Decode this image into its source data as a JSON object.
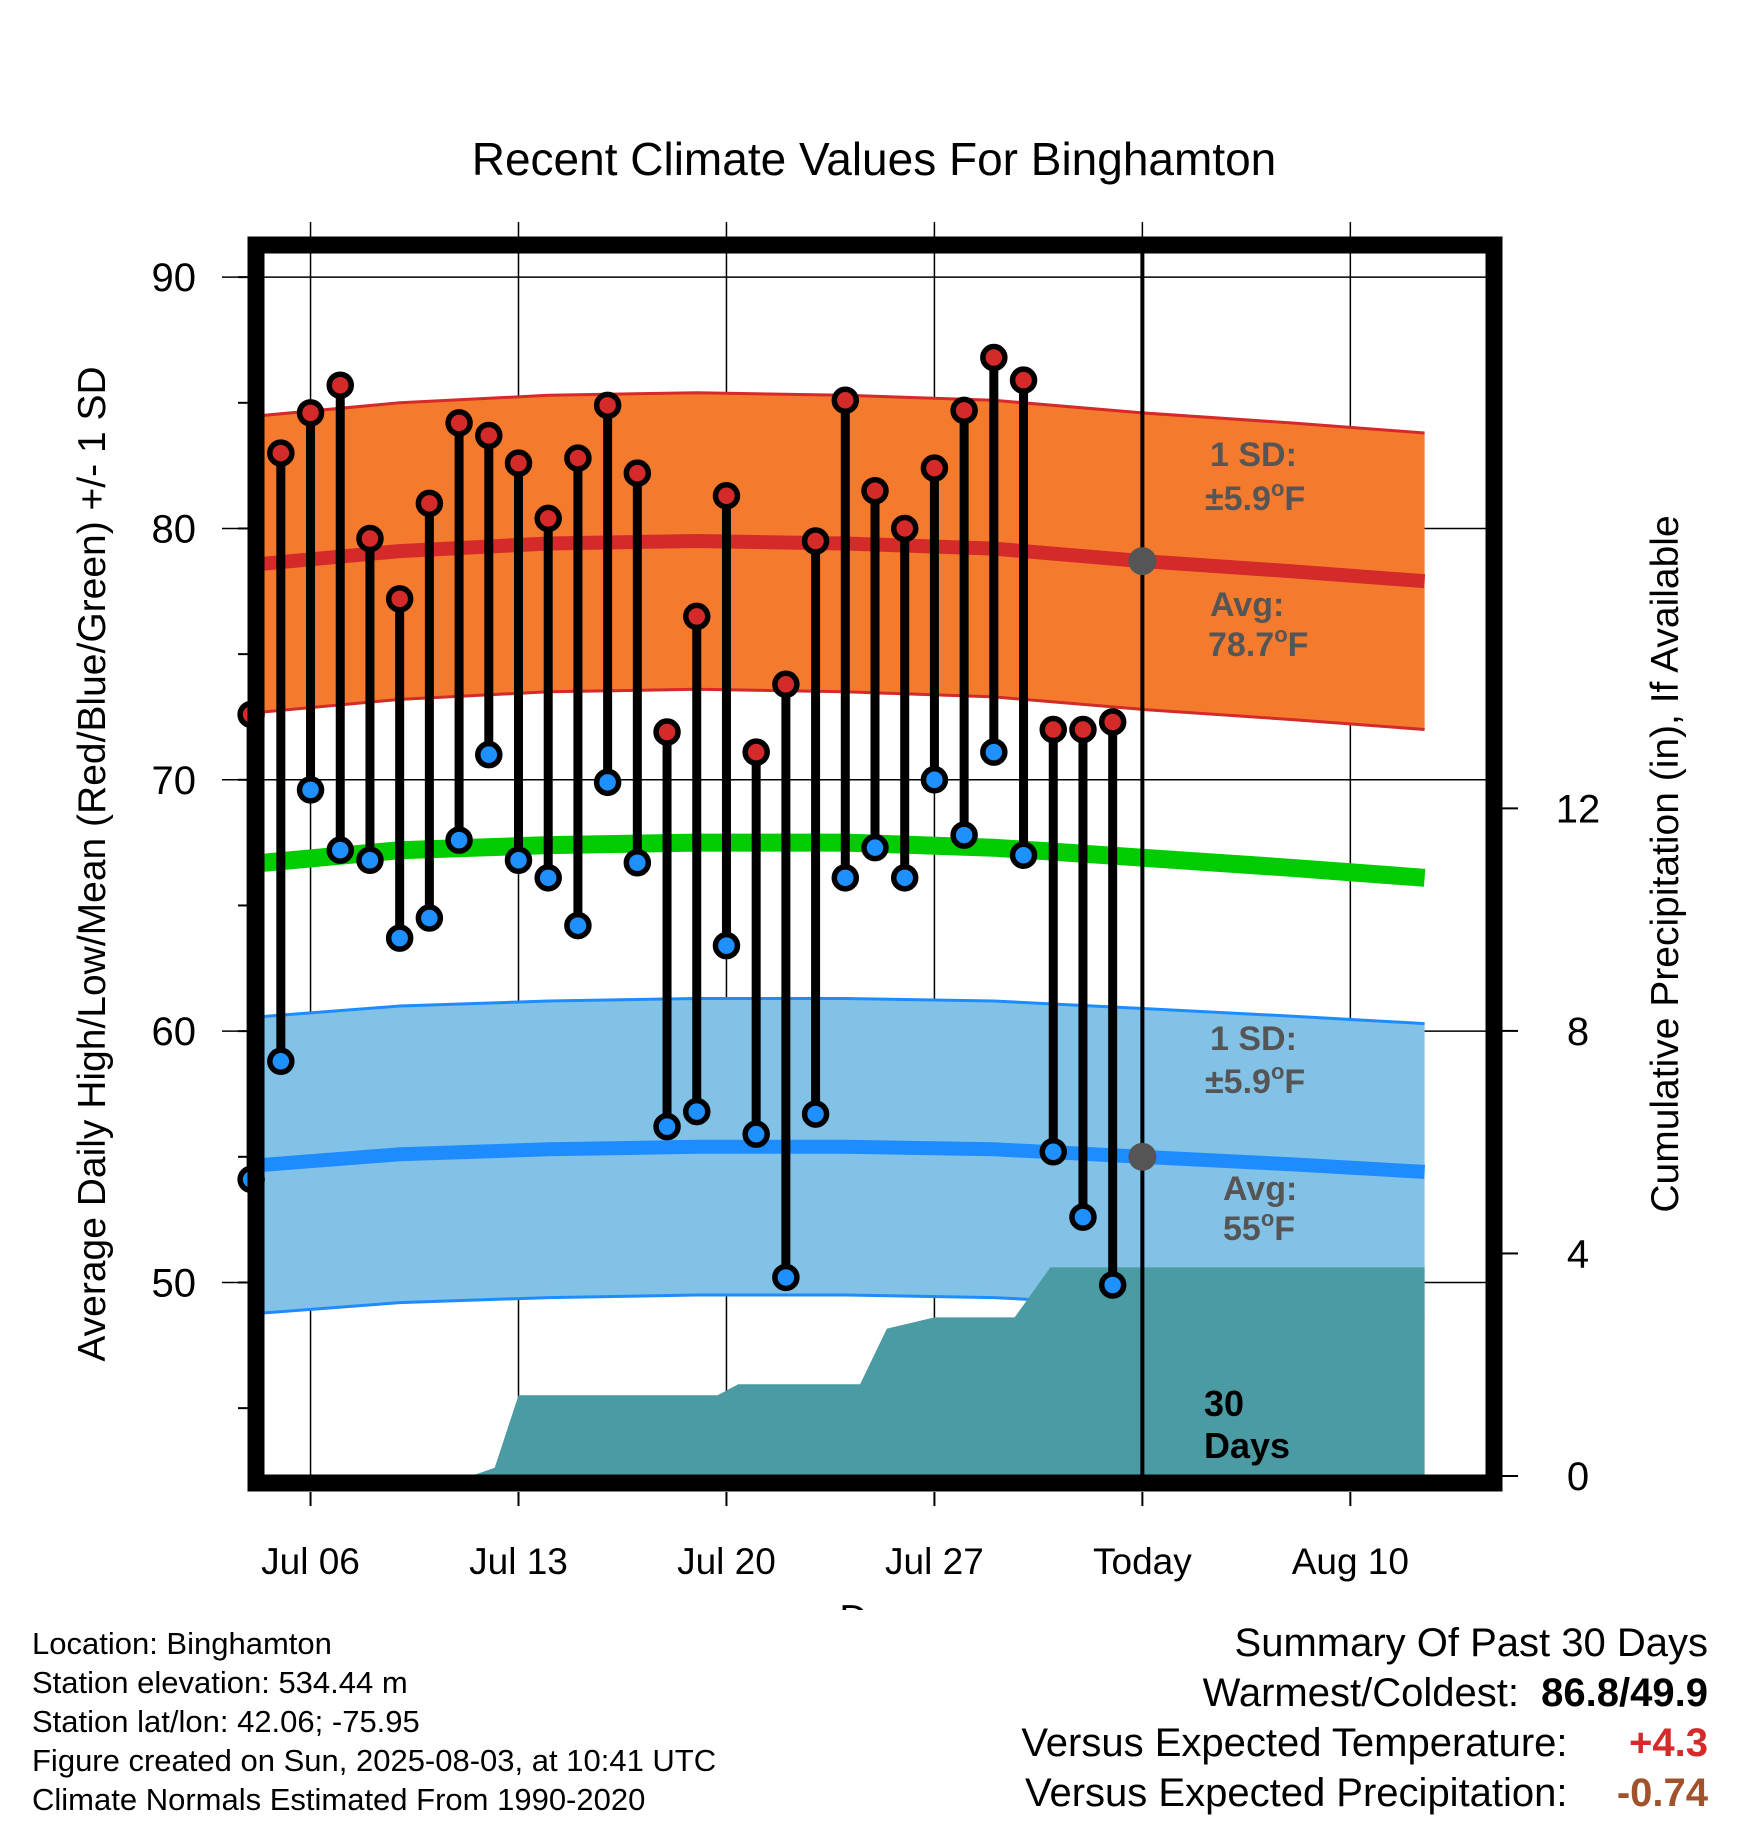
{
  "chart_data": {
    "type": "line",
    "title": "Recent Climate Values For Binghamton",
    "xlabel": "Day",
    "ylabel": "Average Daily High/Low/Mean (Red/Blue/Green) +/- 1 SD",
    "y2label": "Cumulative Precipitation (in), If Available",
    "ylim": [
      42.3,
      91
    ],
    "y2lim": [
      0,
      22
    ],
    "xlim": [
      -29.6,
      11.6
    ],
    "x_tick_values": [
      -28,
      -21,
      -14,
      -7,
      0,
      7
    ],
    "x_tick_labels": [
      "Jul 06",
      "Jul 13",
      "Jul 20",
      "Jul 27",
      "Today",
      "Aug 10"
    ],
    "y_ticks": [
      50,
      60,
      70,
      80,
      90
    ],
    "y2_ticks": [
      0,
      4,
      8,
      12
    ],
    "grid": true,
    "days": [
      -30,
      -29,
      -28,
      -27,
      -26,
      -25,
      -24,
      -23,
      -22,
      -21,
      -20,
      -19,
      -18,
      -17,
      -16,
      -15,
      -14,
      -13,
      -12,
      -11,
      -10,
      -9,
      -8,
      -7,
      -6,
      -5,
      -4,
      -3,
      -2,
      -1
    ],
    "series": [
      {
        "name": "High",
        "values": [
          72.6,
          83.0,
          84.6,
          85.7,
          79.6,
          77.2,
          81.0,
          84.2,
          83.7,
          82.6,
          80.4,
          82.8,
          84.9,
          82.2,
          71.9,
          76.5,
          81.3,
          71.1,
          73.8,
          79.5,
          85.1,
          81.5,
          80.0,
          82.4,
          84.7,
          86.8,
          85.9,
          72.0,
          72.0,
          72.3
        ]
      },
      {
        "name": "Low",
        "values": [
          54.1,
          58.8,
          69.6,
          67.2,
          66.8,
          63.7,
          64.5,
          67.6,
          71.0,
          66.8,
          66.1,
          64.2,
          69.9,
          66.7,
          56.2,
          56.8,
          63.4,
          55.9,
          50.2,
          56.7,
          66.1,
          67.3,
          66.1,
          70.0,
          67.8,
          71.1,
          67.0,
          55.2,
          52.6,
          49.9
        ]
      }
    ],
    "normals": {
      "x": [
        -30.5,
        -25,
        -20,
        -15,
        -10,
        -5,
        0,
        5,
        9.5
      ],
      "high_avg": [
        78.5,
        79.1,
        79.4,
        79.5,
        79.4,
        79.2,
        78.7,
        78.3,
        77.9
      ],
      "low_avg": [
        54.6,
        55.1,
        55.3,
        55.4,
        55.4,
        55.3,
        55.0,
        54.7,
        54.4
      ],
      "mean_avg": [
        66.6,
        67.2,
        67.4,
        67.5,
        67.5,
        67.3,
        66.9,
        66.5,
        66.1
      ],
      "sd": 5.9
    },
    "precip_cumulative": {
      "x": [
        -30.5,
        -22.6,
        -21.8,
        -21,
        -18,
        -16.9,
        -16.1,
        -14.3,
        -13.6,
        -12,
        -11.3,
        -10.2,
        -9.5,
        -8.6,
        -7.8,
        -7,
        -5,
        -4.3,
        -3.1,
        -2.3,
        0,
        2,
        5,
        9.5
      ],
      "y": [
        0,
        0,
        0.15,
        1.45,
        1.45,
        1.45,
        1.45,
        1.45,
        1.65,
        1.65,
        1.65,
        1.65,
        1.65,
        2.65,
        2.75,
        2.85,
        2.85,
        2.85,
        3.75,
        3.75,
        3.75,
        3.75,
        3.75,
        3.75
      ]
    },
    "annotations": {
      "high_sd_line1": "1 SD:",
      "high_sd_line2": "±5.9",
      "high_avg_line1": "Avg:",
      "high_avg_line2": "78.7",
      "low_sd_line1": "1 SD:",
      "low_sd_line2": "±5.9",
      "low_avg_line1": "Avg:",
      "low_avg_line2": "55",
      "degree_sup": "o",
      "unit": "F",
      "today_line1": "30",
      "today_line2": "Days",
      "high_avg_value": 78.7,
      "low_avg_value": 55
    },
    "colors": {
      "high_band": "#f47a2e",
      "high_band_edge": "#d42a2a",
      "high_avg_line": "#d42a2a",
      "low_band": "#82c2e6",
      "low_band_edge": "#1e8cff",
      "low_avg_line": "#1e8cff",
      "mean_line": "#00cc00",
      "precip_fill": "#4a9ba4",
      "high_dot": "#d42a2a",
      "low_dot": "#1e90ff",
      "annotation_text": "#555555",
      "today_marker": "#555555"
    }
  },
  "footer": {
    "location": "Location: Binghamton",
    "elevation": "Station elevation: 534.44 m",
    "latlon": "Station lat/lon: 42.06; -75.95",
    "created": "Figure created on Sun, 2025-08-03, at 10:41 UTC",
    "normals": "Climate Normals Estimated From 1990-2020"
  },
  "summary": {
    "title": "Summary Of Past 30 Days",
    "warmest_label": "Warmest/Coldest:",
    "warmest_value": "86.8/49.9",
    "temp_label": "Versus Expected Temperature:",
    "temp_value": "+4.3",
    "precip_label": "Versus Expected Precipitation:",
    "precip_value": "-0.74",
    "temp_color": "#d42a2a",
    "precip_color": "#a0522d"
  }
}
